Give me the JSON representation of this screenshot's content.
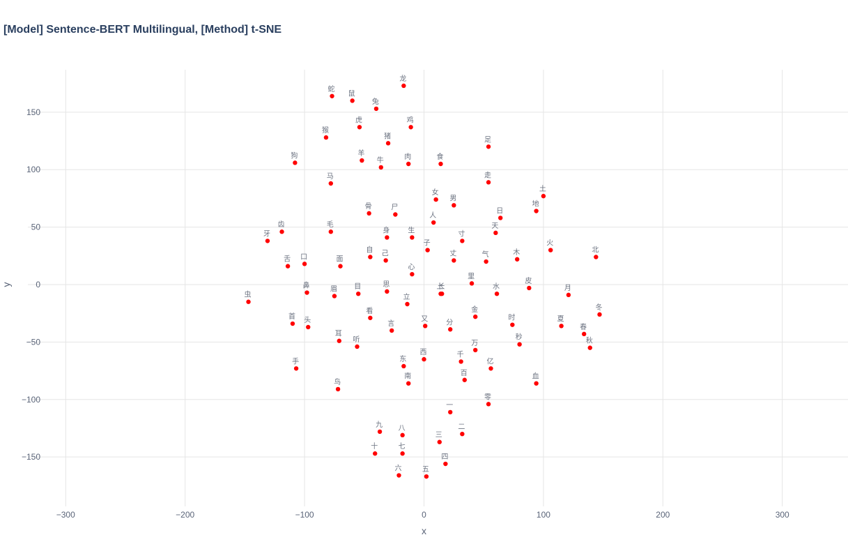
{
  "chart_data": {
    "type": "scatter",
    "title": "[Model] Sentence-BERT Multilingual, [Method] t-SNE",
    "xlabel": "x",
    "ylabel": "y",
    "xlim": [
      -355,
      355
    ],
    "ylim": [
      -193,
      193
    ],
    "xticks": [
      -300,
      -200,
      -100,
      0,
      100,
      200,
      300
    ],
    "yticks": [
      -150,
      -100,
      -50,
      0,
      50,
      100,
      150
    ],
    "xtick_labels": [
      "−300",
      "−200",
      "−100",
      "0",
      "100",
      "200",
      "300"
    ],
    "ytick_labels": [
      "−150",
      "−100",
      "−50",
      "0",
      "50",
      "100",
      "150"
    ],
    "grid": true,
    "marker_color": "#ff0000",
    "points": [
      {
        "label": "龙",
        "x": -17,
        "y": 173
      },
      {
        "label": "蛇",
        "x": -77,
        "y": 164
      },
      {
        "label": "鼠",
        "x": -60,
        "y": 160
      },
      {
        "label": "兔",
        "x": -40,
        "y": 153
      },
      {
        "label": "虎",
        "x": -54,
        "y": 137
      },
      {
        "label": "鸡",
        "x": -11,
        "y": 137
      },
      {
        "label": "猴",
        "x": -82,
        "y": 128
      },
      {
        "label": "猪",
        "x": -30,
        "y": 123
      },
      {
        "label": "足",
        "x": 54,
        "y": 120
      },
      {
        "label": "狗",
        "x": -108,
        "y": 106
      },
      {
        "label": "羊",
        "x": -52,
        "y": 108
      },
      {
        "label": "牛",
        "x": -36,
        "y": 102
      },
      {
        "label": "肉",
        "x": -13,
        "y": 105
      },
      {
        "label": "食",
        "x": 14,
        "y": 105
      },
      {
        "label": "马",
        "x": -78,
        "y": 88
      },
      {
        "label": "走",
        "x": 54,
        "y": 89
      },
      {
        "label": "土",
        "x": 100,
        "y": 77
      },
      {
        "label": "女",
        "x": 10,
        "y": 74
      },
      {
        "label": "男",
        "x": 25,
        "y": 69
      },
      {
        "label": "地",
        "x": 94,
        "y": 64
      },
      {
        "label": "骨",
        "x": -46,
        "y": 62
      },
      {
        "label": "尸",
        "x": -24,
        "y": 61
      },
      {
        "label": "日",
        "x": 64,
        "y": 58
      },
      {
        "label": "人",
        "x": 8,
        "y": 54
      },
      {
        "label": "齿",
        "x": -119,
        "y": 46
      },
      {
        "label": "毛",
        "x": -78,
        "y": 46
      },
      {
        "label": "天",
        "x": 60,
        "y": 45
      },
      {
        "label": "身",
        "x": -31,
        "y": 41
      },
      {
        "label": "生",
        "x": -10,
        "y": 41
      },
      {
        "label": "寸",
        "x": 32,
        "y": 38
      },
      {
        "label": "牙",
        "x": -131,
        "y": 38
      },
      {
        "label": "子",
        "x": 3,
        "y": 30
      },
      {
        "label": "火",
        "x": 106,
        "y": 30
      },
      {
        "label": "自",
        "x": -45,
        "y": 24
      },
      {
        "label": "北",
        "x": 144,
        "y": 24
      },
      {
        "label": "己",
        "x": -32,
        "y": 21
      },
      {
        "label": "丈",
        "x": 25,
        "y": 21
      },
      {
        "label": "木",
        "x": 78,
        "y": 22
      },
      {
        "label": "气",
        "x": 52,
        "y": 20
      },
      {
        "label": "口",
        "x": -100,
        "y": 18
      },
      {
        "label": "舌",
        "x": -114,
        "y": 16
      },
      {
        "label": "面",
        "x": -70,
        "y": 16
      },
      {
        "label": "心",
        "x": -10,
        "y": 9
      },
      {
        "label": "里",
        "x": 40,
        "y": 1
      },
      {
        "label": "皮",
        "x": 88,
        "y": -3
      },
      {
        "label": "鼻",
        "x": -98,
        "y": -7
      },
      {
        "label": "思",
        "x": -31,
        "y": -6
      },
      {
        "label": "长",
        "x": 15,
        "y": -8
      },
      {
        "label": "上",
        "x": 14,
        "y": -8
      },
      {
        "label": "水",
        "x": 61,
        "y": -8
      },
      {
        "label": "目",
        "x": -55,
        "y": -8
      },
      {
        "label": "眉",
        "x": -75,
        "y": -10
      },
      {
        "label": "月",
        "x": 121,
        "y": -9
      },
      {
        "label": "虫",
        "x": -147,
        "y": -15
      },
      {
        "label": "立",
        "x": -14,
        "y": -17
      },
      {
        "label": "冬",
        "x": 147,
        "y": -26
      },
      {
        "label": "金",
        "x": 43,
        "y": -28
      },
      {
        "label": "看",
        "x": -45,
        "y": -29
      },
      {
        "label": "首",
        "x": -110,
        "y": -34
      },
      {
        "label": "时",
        "x": 74,
        "y": -35
      },
      {
        "label": "又",
        "x": 1,
        "y": -36
      },
      {
        "label": "夏",
        "x": 115,
        "y": -36
      },
      {
        "label": "头",
        "x": -97,
        "y": -37
      },
      {
        "label": "分",
        "x": 22,
        "y": -39
      },
      {
        "label": "言",
        "x": -27,
        "y": -40
      },
      {
        "label": "春",
        "x": 134,
        "y": -43
      },
      {
        "label": "耳",
        "x": -71,
        "y": -49
      },
      {
        "label": "秒",
        "x": 80,
        "y": -52
      },
      {
        "label": "听",
        "x": -56,
        "y": -54
      },
      {
        "label": "秋",
        "x": 139,
        "y": -55
      },
      {
        "label": "万",
        "x": 43,
        "y": -57
      },
      {
        "label": "西",
        "x": 0,
        "y": -65
      },
      {
        "label": "千",
        "x": 31,
        "y": -67
      },
      {
        "label": "东",
        "x": -17,
        "y": -71
      },
      {
        "label": "手",
        "x": -107,
        "y": -73
      },
      {
        "label": "亿",
        "x": 56,
        "y": -73
      },
      {
        "label": "百",
        "x": 34,
        "y": -83
      },
      {
        "label": "南",
        "x": -13,
        "y": -86
      },
      {
        "label": "血",
        "x": 94,
        "y": -86
      },
      {
        "label": "鸟",
        "x": -72,
        "y": -91
      },
      {
        "label": "零",
        "x": 54,
        "y": -104
      },
      {
        "label": "一",
        "x": 22,
        "y": -111
      },
      {
        "label": "九",
        "x": -37,
        "y": -128
      },
      {
        "label": "八",
        "x": -18,
        "y": -131
      },
      {
        "label": "二",
        "x": 32,
        "y": -130
      },
      {
        "label": "三",
        "x": 13,
        "y": -137
      },
      {
        "label": "十",
        "x": -41,
        "y": -147
      },
      {
        "label": "七",
        "x": -18,
        "y": -147
      },
      {
        "label": "四",
        "x": 18,
        "y": -156
      },
      {
        "label": "六",
        "x": -21,
        "y": -166
      },
      {
        "label": "五",
        "x": 2,
        "y": -167
      }
    ]
  }
}
